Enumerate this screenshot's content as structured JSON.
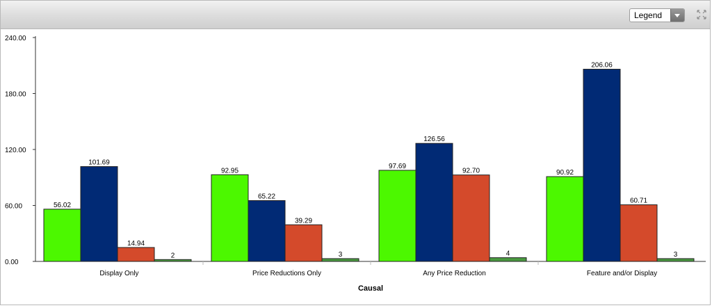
{
  "toolbar": {
    "legend_select": {
      "selected": "Legend"
    },
    "expand_icon": "expand-arrows-icon"
  },
  "chart_data": {
    "type": "bar",
    "categories": [
      "Display Only",
      "Price Reductions Only",
      "Any Price Reduction",
      "Feature and/or Display"
    ],
    "series": [
      {
        "values": [
          56.02,
          92.95,
          97.69,
          90.92
        ],
        "labels": [
          "56.02",
          "92.95",
          "97.69",
          "90.92"
        ],
        "color": "#4cf800"
      },
      {
        "values": [
          101.69,
          65.22,
          126.56,
          206.06
        ],
        "labels": [
          "101.69",
          "65.22",
          "126.56",
          "206.06"
        ],
        "color": "#012a75"
      },
      {
        "values": [
          14.94,
          39.29,
          92.7,
          60.71
        ],
        "labels": [
          "14.94",
          "39.29",
          "92.70",
          "60.71"
        ],
        "color": "#d44a2b"
      },
      {
        "values": [
          2,
          3,
          4,
          3
        ],
        "labels": [
          "2",
          "3",
          "4",
          "3"
        ],
        "color": "#4a9a40"
      }
    ],
    "yticks": [
      "0.00",
      "60.00",
      "120.00",
      "180.00",
      "240.00"
    ],
    "ytick_values": [
      0,
      60,
      120,
      180,
      240
    ],
    "ylim": [
      0,
      240
    ],
    "xlabel": "Causal",
    "ylabel": "",
    "grid": false,
    "legend": "hidden (Legend dropdown)"
  }
}
